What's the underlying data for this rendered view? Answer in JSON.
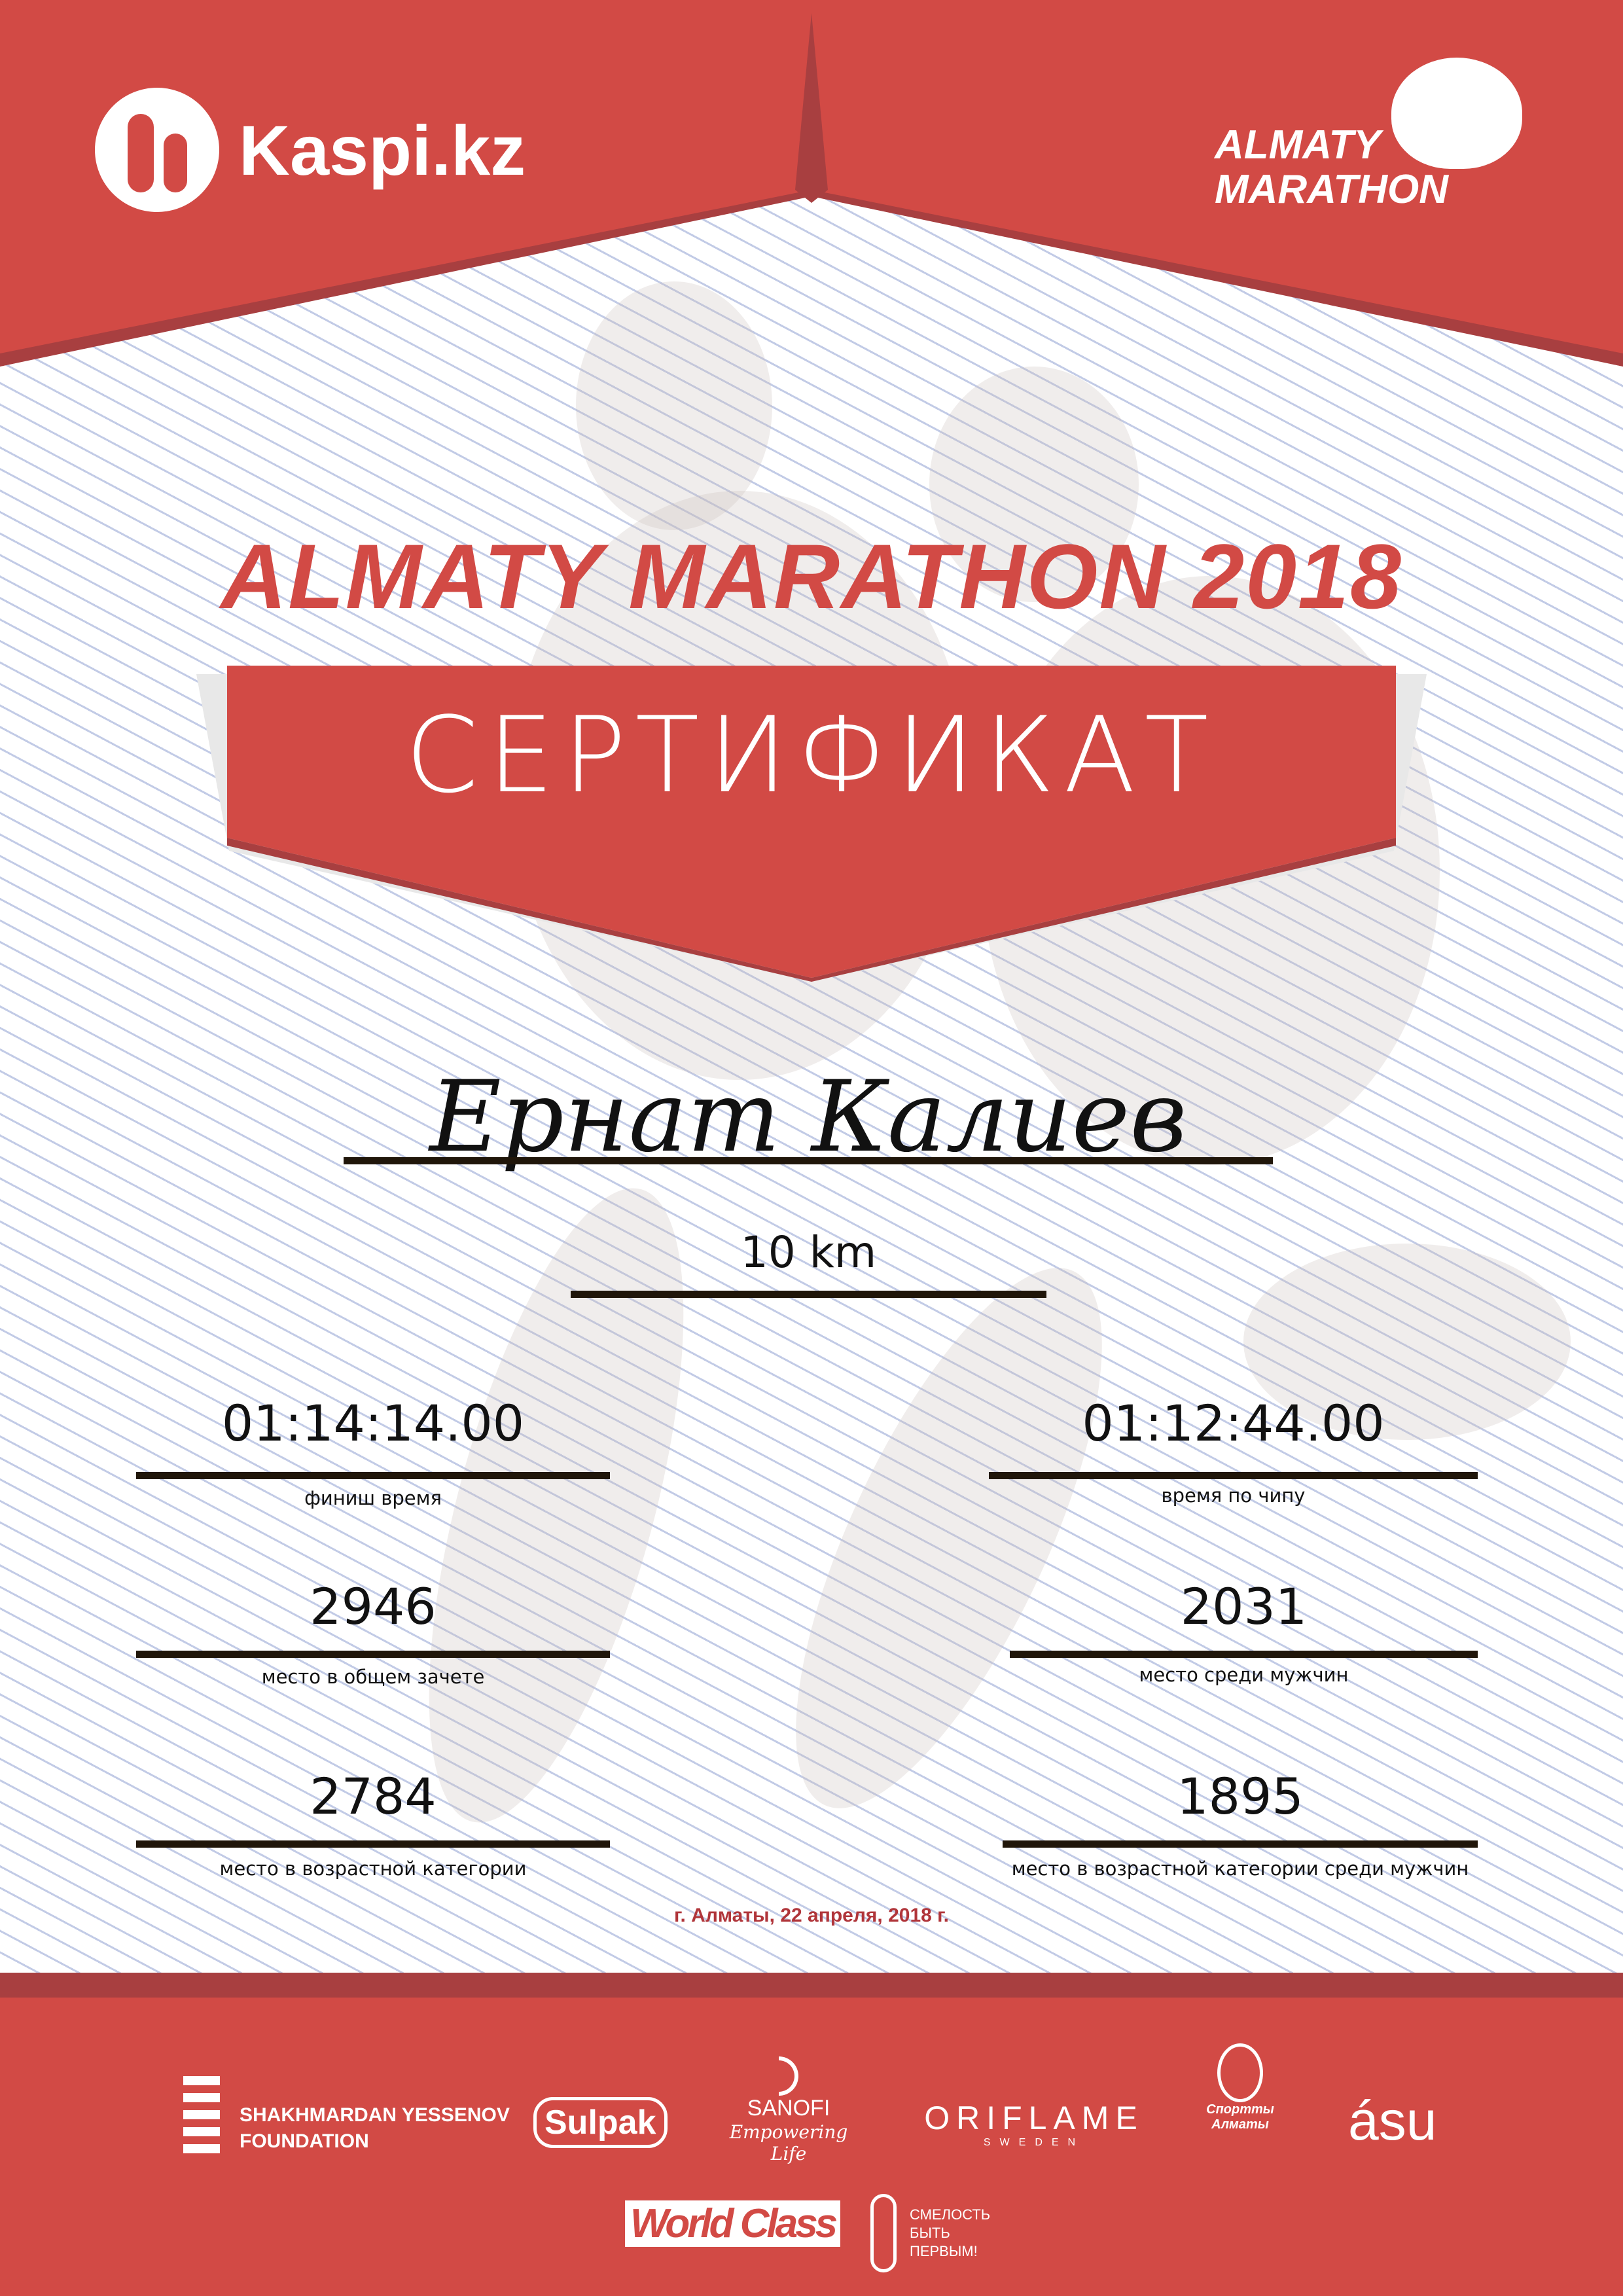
{
  "header": {
    "sponsor_logo": "Kaspi.kz",
    "event_logo_line1": "ALMATY",
    "event_logo_line2": "MARATHON"
  },
  "title": "ALMATY MARATHON 2018",
  "banner": "СЕРТИФИКАТ",
  "participant": {
    "name": "Ернат Калиев",
    "distance": "10 km"
  },
  "results": [
    {
      "value": "01:14:14.00",
      "label": "финиш время"
    },
    {
      "value": "01:12:44.00",
      "label": "время по чипу"
    },
    {
      "value": "2946",
      "label": "место в общем зачете"
    },
    {
      "value": "2031",
      "label": "место среди мужчин"
    },
    {
      "value": "2784",
      "label": "место в возрастной категории"
    },
    {
      "value": "1895",
      "label": "место в возрастной категории среди мужчин"
    }
  ],
  "date": "г. Алматы, 22 апреля, 2018 г.",
  "footer": {
    "yessenov_line1": "SHAKHMARDAN YESSENOV",
    "yessenov_line2": "FOUNDATION",
    "sulpak": "Sulpak",
    "sanofi": "SANOFI",
    "sanofi_tagline": "Empowering Life",
    "oriflame": "ORIFLAME",
    "oriflame_sub": "SWEDEN",
    "sport_almaty": "Спортты Алматы",
    "asu": "ásu",
    "worldclass": "World Class",
    "fund_line1": "СМЕЛОСТЬ",
    "fund_line2": "БЫТЬ",
    "fund_line3": "ПЕРВЫМ!"
  },
  "colors": {
    "red": "#d24a45",
    "dark_red": "#a83f40",
    "date": "#b0353a"
  }
}
